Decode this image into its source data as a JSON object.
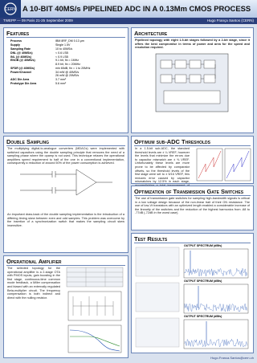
{
  "header": {
    "title": "A 10-BIT 40MS/s PIPELINED ADC IN A 0.13Mm CMOS PROCESS",
    "event": "TWEPP — 09 Paris 21-25 September 2009",
    "author": "Hugo França Santos (CERN)"
  },
  "features": {
    "title": "Features",
    "rows": [
      [
        "Process",
        "IBM 8RF_DM 0.13 μm"
      ],
      [
        "Supply",
        "Single 1.5V"
      ],
      [
        "Sampling Rate",
        "10 to 40MS/s"
      ],
      [
        "DNL (@ 40MS/s)",
        "< 0.6 LSB"
      ],
      [
        "INL (@ 40MS/s)",
        "< 0.9 LSB"
      ],
      [
        "ENOB (@ 40MS/s)",
        "9.1 bit, fin = 1MHz"
      ],
      [
        "",
        "8.9 bit, fin = 20MHz"
      ],
      [
        "SFDR (@ 40MS/s)",
        "min 65dB, fin = 1 to 20MHz"
      ],
      [
        "Power/Channel",
        "34 mW @ 40MS/s"
      ],
      [
        "",
        "26 mW @ 20MS/s"
      ],
      [
        "ADC Die Area",
        "3.7 mm²"
      ],
      [
        "Prototype Die Area",
        "5.6 mm²"
      ]
    ]
  },
  "architecture": {
    "title": "Architecture",
    "text": "Pipelined topology with eight 1.5-bit stages followed by a 2-bit stage, since it offers the best compromise in terms of power and area for the speed and resolution required."
  },
  "double_sampling": {
    "title": "Double Sampling",
    "text": "The multiplying digital-to-analogue converters (MDACs) were implemented with switched capacitors using the double sampling principle that removes the need of a sampling phase where the opamp is not used. This technique relaxes the operational amplifiers speed requirement to half of the one in a conventional implementation, consequently a reduction of around 50% of the power consumption is achieved.",
    "caption": "An important draw-back of the double sampling implementation is the introduction of a differing timing skew between even and odd samples. This problem was overcome by the insertion of a synchronization switch that makes the sampling circuit skew insensitive."
  },
  "sub_adc": {
    "title": "Optimum sub-ADC Thresholds",
    "text": "In a 1.5-bit sub-ADC, the standard threshold levels are ± ¼ VREF, however the levels that minimize the errors due to capacitor mismatch are ± ⅜ VREF. Unfortunately these levels are more prone to be affected by comparator offsets, so the threshold levels of the first stage were set to ± 5/16 VREF, this reduces error caused by capacitor mismatches by 12.5% in each stage, accomplishing a total improvement of 24.8% in a 8-stage configuration."
  },
  "tgate": {
    "title": "Optimization of Transmission Gate Switches",
    "text": "The use of transmission gate switches for sampling high-bandwidth signals is critical in a low voltage design because of the non-linear trait of their ON resistance. The use of low-Vt transistors with an optimized length enabled a considerable increase of the linearity of the switches and the reduction of the highest harmonics from -68 to -77dB (-72dB in the worst case)."
  },
  "opamp": {
    "title": "Operational Amplifier",
    "text": "The selected topology for the operational amplifier is a 2-stage OTA with PMOS inputs, gain boosting in the first stage, continuous-time common mode feedback, a Miller compensation and biased with an externally regulated Beta-multiplier circuit. The frequency compensation is both indirect and direct with the nulling resistor."
  },
  "tests": {
    "title": "Test Results",
    "plots": [
      "OUTPUT SPECTRUM (dBfs)",
      "OUTPUT SPECTRUM (dBfs)",
      "OUTPUT SPECTRUM (dBfs)"
    ]
  },
  "footer": {
    "email": "Hugo.Franca.Santos@cern.ch"
  }
}
